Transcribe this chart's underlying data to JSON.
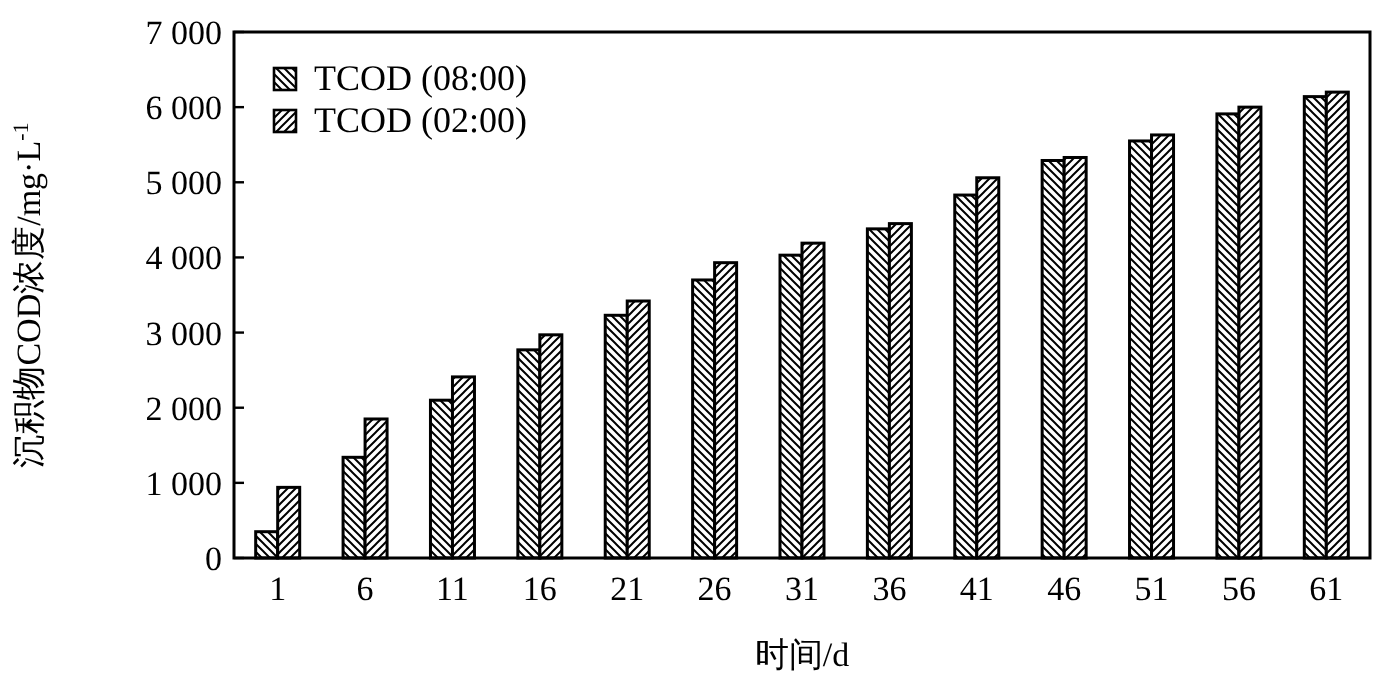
{
  "chart_data": {
    "type": "bar",
    "xlabel": "时间/d",
    "ylabel": "沉积物COD浓度/mg·L$^{-1}$",
    "categories": [
      "1",
      "6",
      "11",
      "16",
      "21",
      "26",
      "31",
      "36",
      "41",
      "46",
      "51",
      "56",
      "61"
    ],
    "series": [
      {
        "name": "TCOD (08:00)",
        "color": "#000000",
        "values": [
          350,
          1340,
          2100,
          2770,
          3230,
          3700,
          4030,
          4380,
          4830,
          5290,
          5550,
          5910,
          6140
        ]
      },
      {
        "name": "TCOD (02:00)",
        "color": "#000000",
        "values": [
          940,
          1850,
          2410,
          2970,
          3420,
          3930,
          4190,
          4450,
          5060,
          5330,
          5630,
          6000,
          6200
        ]
      }
    ],
    "ylim": [
      0,
      7000
    ],
    "yticks": [
      0,
      {
        "value": 1000,
        "label": "1 000"
      },
      {
        "value": 2000,
        "label": "2 000"
      },
      {
        "value": 3000,
        "label": "3 000"
      },
      {
        "value": 4000,
        "label": "4 000"
      },
      {
        "value": 5000,
        "label": "5 000"
      },
      {
        "value": 6000,
        "label": "6 000"
      },
      {
        "value": 7000,
        "label": "7 000"
      }
    ],
    "legend": "top left",
    "grid": false
  }
}
